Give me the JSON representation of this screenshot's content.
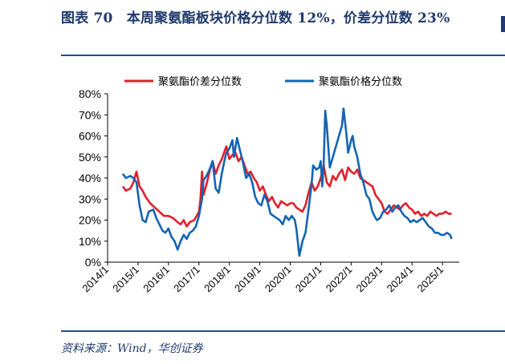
{
  "figure": {
    "title": "图表 70　本周聚氨酯板块价格分位数 12%，价差分位数 23%",
    "source": "资料来源：Wind，华创证券"
  },
  "chart_data": {
    "type": "line",
    "title": "",
    "xlabel": "",
    "ylabel": "",
    "ylim": [
      0,
      80
    ],
    "y_ticks": [
      "0%",
      "10%",
      "20%",
      "30%",
      "40%",
      "50%",
      "60%",
      "70%",
      "80%"
    ],
    "x_ticks": [
      "2014/1",
      "2015/1",
      "2016/1",
      "2017/1",
      "2018/1",
      "2019/1",
      "2020/1",
      "2021/1",
      "2022/1",
      "2023/1",
      "2024/1",
      "2025/1"
    ],
    "legend_position": "top",
    "grid": false,
    "series": [
      {
        "name": "聚氨酯价差分位数",
        "color": "#e0202a",
        "points": [
          [
            2014.5,
            36
          ],
          [
            2014.6,
            34
          ],
          [
            2014.75,
            35
          ],
          [
            2014.85,
            38
          ],
          [
            2014.95,
            43
          ],
          [
            2015.05,
            36
          ],
          [
            2015.15,
            34
          ],
          [
            2015.25,
            31
          ],
          [
            2015.4,
            28
          ],
          [
            2015.55,
            26
          ],
          [
            2015.7,
            24
          ],
          [
            2015.85,
            22
          ],
          [
            2016.0,
            22
          ],
          [
            2016.15,
            21
          ],
          [
            2016.3,
            19
          ],
          [
            2016.4,
            18
          ],
          [
            2016.5,
            20
          ],
          [
            2016.6,
            17
          ],
          [
            2016.7,
            19
          ],
          [
            2016.85,
            20
          ],
          [
            2017.0,
            24
          ],
          [
            2017.05,
            30
          ],
          [
            2017.1,
            43
          ],
          [
            2017.15,
            32
          ],
          [
            2017.25,
            37
          ],
          [
            2017.35,
            43
          ],
          [
            2017.45,
            48
          ],
          [
            2017.55,
            42
          ],
          [
            2017.65,
            46
          ],
          [
            2017.75,
            49
          ],
          [
            2017.85,
            53
          ],
          [
            2017.9,
            55
          ],
          [
            2018.0,
            49
          ],
          [
            2018.1,
            51
          ],
          [
            2018.2,
            52
          ],
          [
            2018.3,
            48
          ],
          [
            2018.4,
            50
          ],
          [
            2018.5,
            46
          ],
          [
            2018.6,
            42
          ],
          [
            2018.7,
            43
          ],
          [
            2018.8,
            40
          ],
          [
            2018.9,
            38
          ],
          [
            2019.0,
            34
          ],
          [
            2019.1,
            36
          ],
          [
            2019.2,
            32
          ],
          [
            2019.3,
            29
          ],
          [
            2019.4,
            31
          ],
          [
            2019.5,
            28
          ],
          [
            2019.6,
            26
          ],
          [
            2019.7,
            29
          ],
          [
            2019.8,
            28
          ],
          [
            2019.9,
            27
          ],
          [
            2020.0,
            28
          ],
          [
            2020.1,
            28
          ],
          [
            2020.2,
            26
          ],
          [
            2020.3,
            25
          ],
          [
            2020.4,
            24
          ],
          [
            2020.5,
            27
          ],
          [
            2020.6,
            33
          ],
          [
            2020.7,
            38
          ],
          [
            2020.8,
            34
          ],
          [
            2020.9,
            36
          ],
          [
            2021.0,
            40
          ],
          [
            2021.1,
            46
          ],
          [
            2021.2,
            38
          ],
          [
            2021.3,
            36
          ],
          [
            2021.4,
            41
          ],
          [
            2021.5,
            39
          ],
          [
            2021.6,
            42
          ],
          [
            2021.7,
            44
          ],
          [
            2021.8,
            39
          ],
          [
            2021.9,
            45
          ],
          [
            2022.0,
            43
          ],
          [
            2022.1,
            42
          ],
          [
            2022.2,
            44
          ],
          [
            2022.3,
            40
          ],
          [
            2022.4,
            39
          ],
          [
            2022.5,
            38
          ],
          [
            2022.6,
            37
          ],
          [
            2022.7,
            36
          ],
          [
            2022.8,
            32
          ],
          [
            2022.9,
            30
          ],
          [
            2023.0,
            28
          ],
          [
            2023.1,
            24
          ],
          [
            2023.2,
            23
          ],
          [
            2023.3,
            25
          ],
          [
            2023.4,
            27
          ],
          [
            2023.5,
            26
          ],
          [
            2023.6,
            25
          ],
          [
            2023.7,
            27
          ],
          [
            2023.8,
            28
          ],
          [
            2023.9,
            26
          ],
          [
            2024.0,
            25
          ],
          [
            2024.1,
            23
          ],
          [
            2024.2,
            24
          ],
          [
            2024.3,
            22
          ],
          [
            2024.4,
            23
          ],
          [
            2024.5,
            22
          ],
          [
            2024.6,
            24
          ],
          [
            2024.7,
            23
          ],
          [
            2024.8,
            22
          ],
          [
            2024.9,
            23
          ],
          [
            2025.0,
            23
          ],
          [
            2025.1,
            24
          ],
          [
            2025.2,
            23
          ],
          [
            2025.3,
            23
          ]
        ]
      },
      {
        "name": "聚氨酯价格分位数",
        "color": "#1464b4",
        "points": [
          [
            2014.5,
            42
          ],
          [
            2014.6,
            40
          ],
          [
            2014.75,
            41
          ],
          [
            2014.85,
            40
          ],
          [
            2014.95,
            38
          ],
          [
            2015.05,
            27
          ],
          [
            2015.15,
            20
          ],
          [
            2015.25,
            19
          ],
          [
            2015.35,
            24
          ],
          [
            2015.5,
            25
          ],
          [
            2015.6,
            21
          ],
          [
            2015.7,
            18
          ],
          [
            2015.8,
            15
          ],
          [
            2015.9,
            14
          ],
          [
            2016.0,
            16
          ],
          [
            2016.1,
            12
          ],
          [
            2016.2,
            10
          ],
          [
            2016.3,
            6
          ],
          [
            2016.4,
            10
          ],
          [
            2016.5,
            13
          ],
          [
            2016.6,
            11
          ],
          [
            2016.7,
            14
          ],
          [
            2016.8,
            15
          ],
          [
            2016.9,
            17
          ],
          [
            2017.0,
            22
          ],
          [
            2017.1,
            30
          ],
          [
            2017.15,
            39
          ],
          [
            2017.25,
            41
          ],
          [
            2017.35,
            44
          ],
          [
            2017.45,
            48
          ],
          [
            2017.55,
            35
          ],
          [
            2017.65,
            33
          ],
          [
            2017.75,
            42
          ],
          [
            2017.85,
            49
          ],
          [
            2017.9,
            52
          ],
          [
            2018.0,
            54
          ],
          [
            2018.1,
            58
          ],
          [
            2018.15,
            50
          ],
          [
            2018.25,
            59
          ],
          [
            2018.35,
            53
          ],
          [
            2018.45,
            47
          ],
          [
            2018.55,
            40
          ],
          [
            2018.65,
            42
          ],
          [
            2018.75,
            38
          ],
          [
            2018.85,
            31
          ],
          [
            2018.95,
            28
          ],
          [
            2019.05,
            27
          ],
          [
            2019.15,
            32
          ],
          [
            2019.25,
            29
          ],
          [
            2019.35,
            23
          ],
          [
            2019.45,
            22
          ],
          [
            2019.55,
            21
          ],
          [
            2019.65,
            20
          ],
          [
            2019.75,
            18
          ],
          [
            2019.85,
            22
          ],
          [
            2019.95,
            20
          ],
          [
            2020.05,
            22
          ],
          [
            2020.15,
            20
          ],
          [
            2020.2,
            16
          ],
          [
            2020.3,
            3
          ],
          [
            2020.4,
            10
          ],
          [
            2020.5,
            14
          ],
          [
            2020.6,
            25
          ],
          [
            2020.7,
            37
          ],
          [
            2020.75,
            46
          ],
          [
            2020.85,
            44
          ],
          [
            2020.95,
            45
          ],
          [
            2021.0,
            48
          ],
          [
            2021.05,
            36
          ],
          [
            2021.1,
            47
          ],
          [
            2021.15,
            72
          ],
          [
            2021.2,
            65
          ],
          [
            2021.3,
            45
          ],
          [
            2021.4,
            50
          ],
          [
            2021.5,
            55
          ],
          [
            2021.6,
            60
          ],
          [
            2021.7,
            65
          ],
          [
            2021.75,
            73
          ],
          [
            2021.85,
            60
          ],
          [
            2021.9,
            52
          ],
          [
            2022.0,
            58
          ],
          [
            2022.05,
            60
          ],
          [
            2022.1,
            55
          ],
          [
            2022.2,
            50
          ],
          [
            2022.3,
            42
          ],
          [
            2022.4,
            38
          ],
          [
            2022.5,
            32
          ],
          [
            2022.6,
            30
          ],
          [
            2022.65,
            27
          ],
          [
            2022.7,
            24
          ],
          [
            2022.8,
            21
          ],
          [
            2022.85,
            20
          ],
          [
            2022.95,
            21
          ],
          [
            2023.05,
            24
          ],
          [
            2023.15,
            25
          ],
          [
            2023.25,
            27
          ],
          [
            2023.35,
            24
          ],
          [
            2023.45,
            26
          ],
          [
            2023.55,
            27
          ],
          [
            2023.65,
            24
          ],
          [
            2023.75,
            22
          ],
          [
            2023.85,
            21
          ],
          [
            2023.95,
            19
          ],
          [
            2024.05,
            20
          ],
          [
            2024.15,
            19
          ],
          [
            2024.25,
            20
          ],
          [
            2024.35,
            21
          ],
          [
            2024.45,
            19
          ],
          [
            2024.55,
            17
          ],
          [
            2024.65,
            16
          ],
          [
            2024.75,
            14
          ],
          [
            2024.85,
            14
          ],
          [
            2024.95,
            13
          ],
          [
            2025.05,
            13
          ],
          [
            2025.15,
            14
          ],
          [
            2025.25,
            13
          ],
          [
            2025.3,
            11
          ]
        ]
      }
    ]
  }
}
